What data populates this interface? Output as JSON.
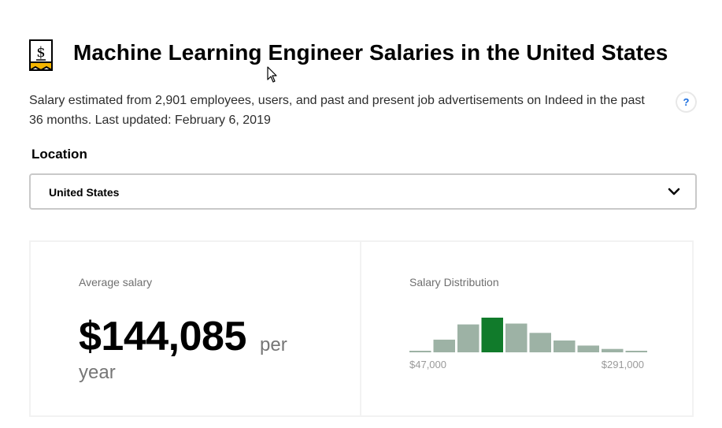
{
  "header": {
    "title": "Machine Learning Engineer Salaries in the United States",
    "logo_icon": "salary-badge-icon"
  },
  "description": "Salary estimated from 2,901 employees, users, and past and present job advertisements on Indeed in the past 36 months. Last updated: February 6, 2019",
  "help": {
    "label": "?",
    "icon": "help-icon"
  },
  "location": {
    "label": "Location",
    "selected": "United States",
    "icon": "chevron-down-icon"
  },
  "average": {
    "label": "Average salary",
    "amount": "$144,085",
    "per": "per",
    "period": "year"
  },
  "distribution": {
    "label": "Salary Distribution",
    "min_label": "$47,000",
    "max_label": "$291,000",
    "highlight_color": "#117b2b",
    "bar_color": "#9db2a5"
  },
  "chart_data": {
    "type": "bar",
    "values": [
      1,
      15,
      33,
      41,
      34,
      23,
      14,
      8,
      4,
      1
    ],
    "highlight_index": 3,
    "xlim": [
      "$47,000",
      "$291,000"
    ]
  }
}
